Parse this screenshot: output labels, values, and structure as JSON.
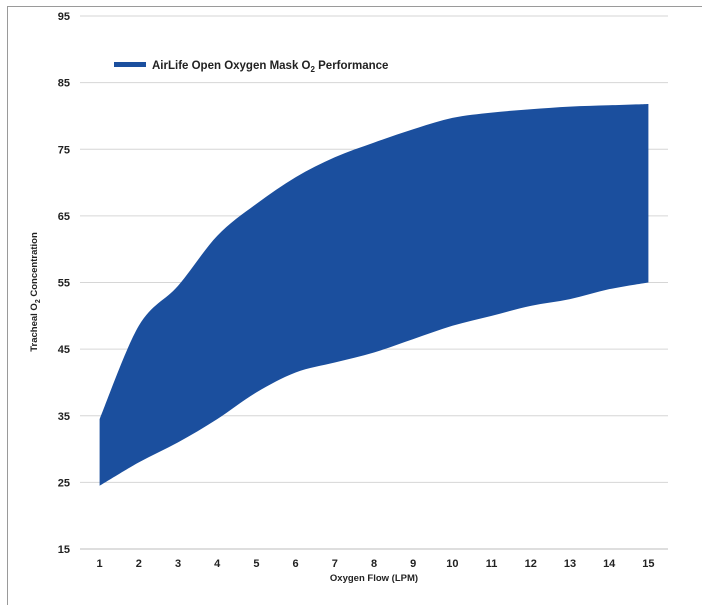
{
  "chart_data": {
    "type": "area",
    "title": "",
    "legend": {
      "placement": "top-left",
      "label_main": "AirLife Open Oxygen Mask O",
      "label_sub": "2",
      "label_tail": " Performance"
    },
    "xlabel": "Oxygen Flow (LPM)",
    "ylabel_main": "Tracheal O",
    "ylabel_sub": "2",
    "ylabel_tail": " Concentration",
    "x": [
      1,
      2,
      3,
      4,
      5,
      6,
      7,
      8,
      9,
      10,
      11,
      12,
      13,
      14,
      15
    ],
    "x_ticks": [
      "1",
      "2",
      "3",
      "4",
      "5",
      "6",
      "7",
      "8",
      "9",
      "10",
      "11",
      "12",
      "13",
      "14",
      "15"
    ],
    "y_ticks": [
      "15",
      "25",
      "35",
      "45",
      "55",
      "65",
      "75",
      "85",
      "95"
    ],
    "ylim": [
      15,
      95
    ],
    "xlim": [
      0.5,
      15.5
    ],
    "grid": true,
    "series": [
      {
        "name": "AirLife Open Oxygen Mask O2 Performance",
        "color": "#1b4f9e",
        "upper": [
          34.5,
          48.5,
          54.5,
          62,
          66.8,
          70.8,
          73.8,
          76,
          78,
          79.7,
          80.5,
          81,
          81.4,
          81.6,
          81.8
        ],
        "lower": [
          24.5,
          28,
          31,
          34.5,
          38.5,
          41.5,
          43,
          44.5,
          46.5,
          48.5,
          50,
          51.5,
          52.5,
          54,
          55
        ]
      }
    ]
  }
}
